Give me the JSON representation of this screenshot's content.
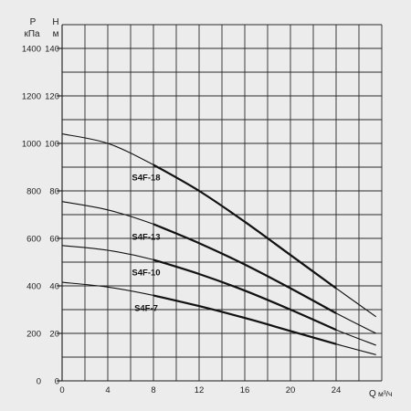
{
  "chart_data": {
    "type": "line",
    "grid": true,
    "x_axis": {
      "label_letter": "Q",
      "unit": "м³/ч",
      "range": [
        0,
        28
      ],
      "ticks": [
        0,
        4,
        8,
        12,
        16,
        20,
        24
      ],
      "tick_labels": [
        "0",
        "4",
        "8",
        "12",
        "16",
        "20",
        "24"
      ]
    },
    "y_axis_head": {
      "label_letter": "H",
      "unit": "м",
      "range": [
        0,
        150
      ],
      "tick_labels": [
        "0",
        "20",
        "40",
        "60",
        "80",
        "100",
        "120",
        "140"
      ]
    },
    "y_axis_pressure": {
      "label_letter": "P",
      "unit": "кПа",
      "range": [
        0,
        1500
      ],
      "tick_labels": [
        "0",
        "200",
        "400",
        "600",
        "800",
        "1000",
        "1200",
        "1400"
      ]
    },
    "series": [
      {
        "name": "S4F-18",
        "x": [
          0,
          4,
          8,
          12,
          16,
          20,
          24,
          27.5
        ],
        "y": [
          104,
          100,
          91,
          80,
          67,
          53,
          39,
          27
        ]
      },
      {
        "name": "S4F-13",
        "x": [
          0,
          4,
          8,
          12,
          16,
          20,
          24,
          27.5
        ],
        "y": [
          75.5,
          72,
          66,
          58,
          49,
          39,
          28.5,
          20
        ]
      },
      {
        "name": "S4F-10",
        "x": [
          0,
          4,
          8,
          12,
          16,
          20,
          24,
          27.5
        ],
        "y": [
          57,
          55,
          51,
          45,
          38,
          30,
          21.5,
          15
        ]
      },
      {
        "name": "S4F-7",
        "x": [
          0,
          4,
          8,
          12,
          16,
          20,
          24,
          27.5
        ],
        "y": [
          41.5,
          39.5,
          36,
          31.5,
          26.5,
          21,
          15.5,
          11
        ]
      }
    ]
  }
}
